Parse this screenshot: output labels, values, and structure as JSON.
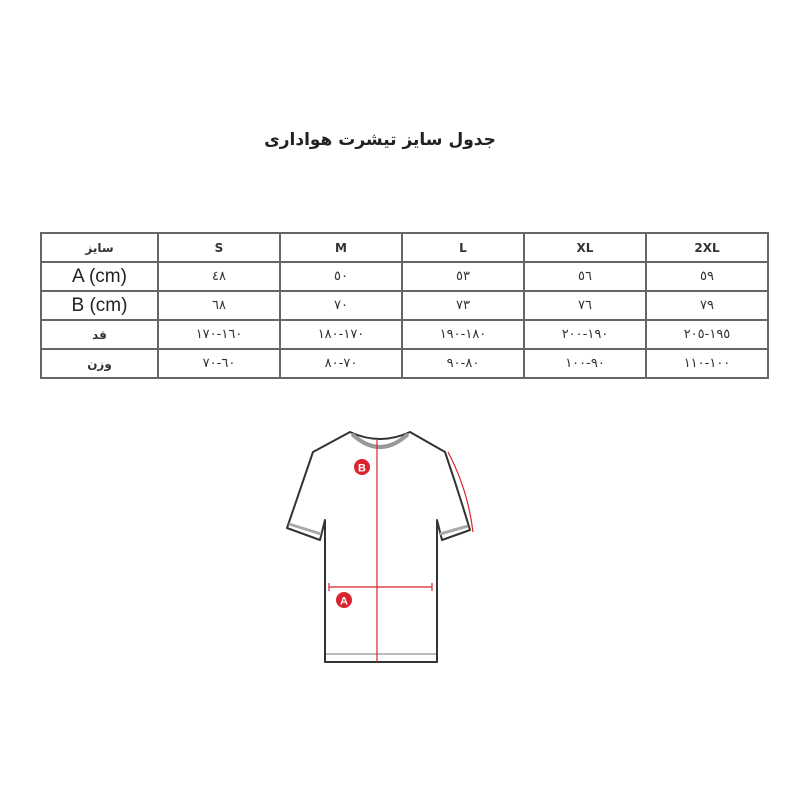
{
  "title": "جدول سایز تیشرت هواداری",
  "table": {
    "header": [
      "سایز",
      "S",
      "M",
      "L",
      "XL",
      "2XL"
    ],
    "rows": [
      {
        "label": "A (cm)",
        "values": [
          "٤٨",
          "٥٠",
          "٥٣",
          "٥٦",
          "٥٩"
        ]
      },
      {
        "label": "B (cm)",
        "values": [
          "٦٨",
          "٧٠",
          "٧٣",
          "٧٦",
          "٧٩"
        ]
      },
      {
        "label": "قد",
        "values": [
          "١٦٠-١٧٠",
          "١٧٠-١٨٠",
          "١٨٠-١٩٠",
          "١٩٠-٢٠٠",
          "١٩٥-٢٠٥"
        ]
      },
      {
        "label": "وزن",
        "values": [
          "٦٠-٧٠",
          "٧٠-٨٠",
          "٨٠-٩٠",
          "٩٠-١٠٠",
          "١٠٠-١١٠"
        ]
      }
    ]
  },
  "diagram": {
    "marker_a": "A",
    "marker_b": "B",
    "accent_color": "#d9232e"
  }
}
